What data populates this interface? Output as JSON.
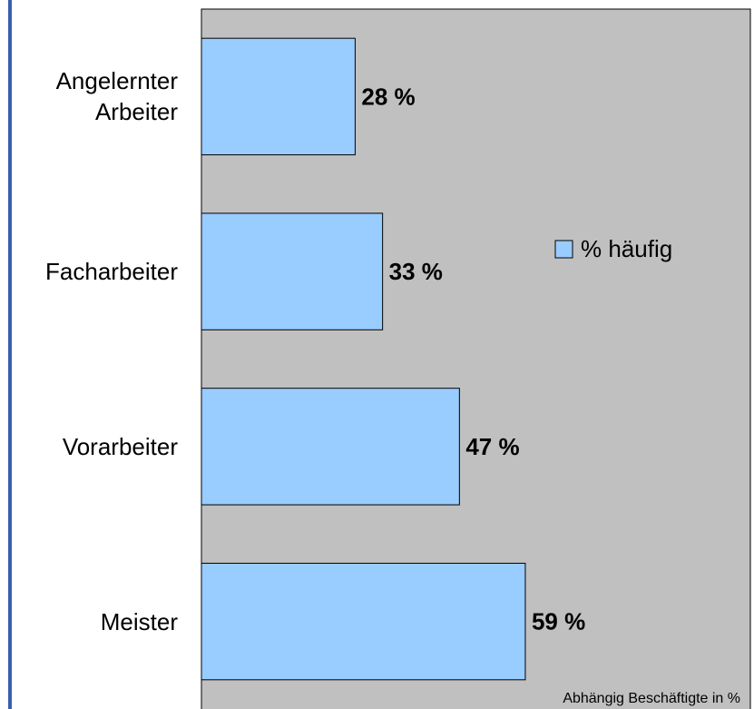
{
  "chart_data": {
    "type": "bar",
    "orientation": "horizontal",
    "categories": [
      "Angelernter Arbeiter",
      "Facharbeiter",
      "Vorarbeiter",
      "Meister"
    ],
    "series": [
      {
        "name": "% häufig",
        "color": "#99ccff",
        "values": [
          28,
          33,
          47,
          59
        ],
        "value_labels": [
          "28 %",
          "33 %",
          "47 %",
          "59 %"
        ]
      }
    ],
    "xlim": [
      0,
      100
    ],
    "legend": "right",
    "plot_background": "#c0c0c0",
    "annotation": "Abhängig Beschäftigte in %"
  }
}
